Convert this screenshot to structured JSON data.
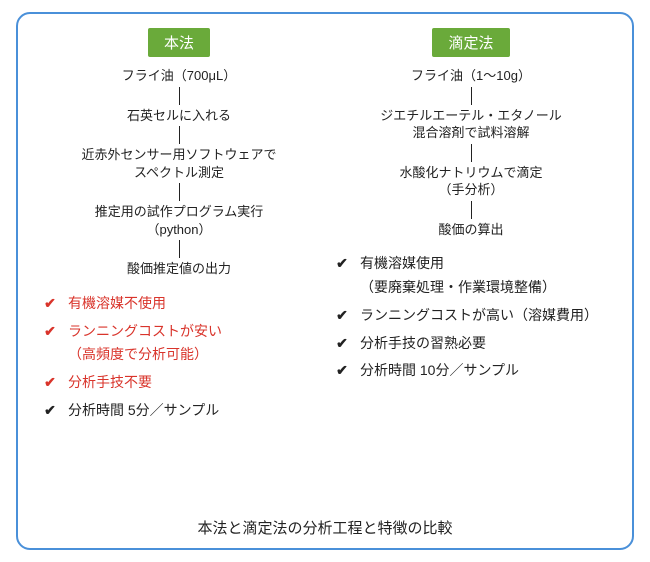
{
  "layout": {
    "frame_border_color": "#4a90d9",
    "frame_border_radius": 14,
    "background_color": "#ffffff"
  },
  "header": {
    "badge_bg": "#6aaa3a",
    "badge_fg": "#ffffff",
    "badge_fontsize": 15
  },
  "flow_style": {
    "step_fontsize": 13,
    "step_color": "#222222",
    "connector_color": "#222222",
    "connector_height": 18
  },
  "check_style": {
    "fontsize": 14,
    "highlight_color": "#d9342b",
    "normal_color": "#222222",
    "mark_glyph": "✔"
  },
  "left": {
    "title": "本法",
    "steps": [
      "フライ油（700μL）",
      "石英セルに入れる",
      "近赤外センサー用ソフトウェアで\nスペクトル測定",
      "推定用の試作プログラム実行\n（python）",
      "酸価推定値の出力"
    ],
    "checks": [
      {
        "text": "有機溶媒不使用",
        "highlight": true
      },
      {
        "text": "ランニングコストが安い\n（高頻度で分析可能）",
        "highlight": true
      },
      {
        "text": "分析手技不要",
        "highlight": true
      },
      {
        "text": "分析時間 5分／サンプル",
        "highlight": false
      }
    ]
  },
  "right": {
    "title": "滴定法",
    "steps": [
      "フライ油（1〜10g）",
      "ジエチルエーテル・エタノール\n混合溶剤で試料溶解",
      "水酸化ナトリウムで滴定\n（手分析）",
      "酸価の算出"
    ],
    "checks": [
      {
        "text": "有機溶媒使用\n（要廃棄処理・作業環境整備）",
        "highlight": false
      },
      {
        "text": "ランニングコストが高い（溶媒費用）",
        "highlight": false
      },
      {
        "text": "分析手技の習熟必要",
        "highlight": false
      },
      {
        "text": "分析時間 10分／サンプル",
        "highlight": false
      }
    ]
  },
  "caption": "本法と滴定法の分析工程と特徴の比較"
}
